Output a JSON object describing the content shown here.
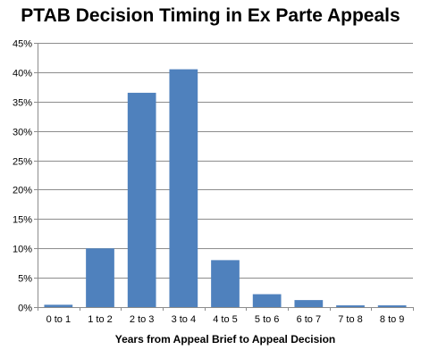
{
  "chart_data": {
    "type": "bar",
    "title": "PTAB Decision Timing in Ex Parte Appeals",
    "xlabel": "Years from Appeal Brief to Appeal Decision",
    "ylabel": "",
    "categories": [
      "0 to 1",
      "1 to 2",
      "2 to 3",
      "3 to 4",
      "4 to 5",
      "5 to 6",
      "6 to 7",
      "7 to 8",
      "8 to 9"
    ],
    "values": [
      0.4,
      10.0,
      36.5,
      40.5,
      8.0,
      2.2,
      1.2,
      0.3,
      0.3
    ],
    "ylim": [
      0,
      45
    ],
    "yticks": [
      0,
      5,
      10,
      15,
      20,
      25,
      30,
      35,
      40,
      45
    ],
    "ytick_labels": [
      "0%",
      "5%",
      "10%",
      "15%",
      "20%",
      "25%",
      "30%",
      "35%",
      "40%",
      "45%"
    ],
    "grid": true,
    "legend": "none",
    "bar_color": "#4F81BD"
  }
}
